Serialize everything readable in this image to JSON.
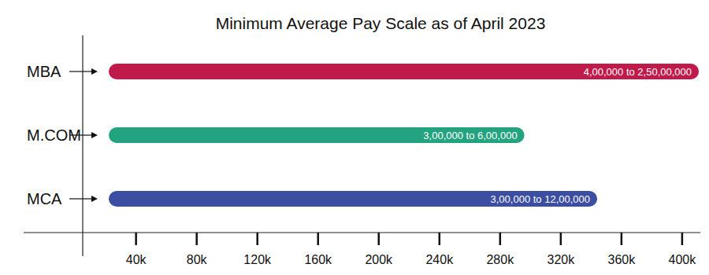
{
  "chart_data": {
    "type": "bar",
    "orientation": "horizontal",
    "title": "Minimum Average Pay Scale as of April 2023",
    "categories": [
      "MBA",
      "M.COM",
      "MCA"
    ],
    "values": [
      411000,
      296000,
      344000
    ],
    "colors": [
      "#c01a4b",
      "#23a380",
      "#3b4ea2"
    ],
    "annotations": [
      "4,00,000 to 2,50,00,000",
      "3,00,000 to 6,00,000",
      "3,00,000 to 12,00,000"
    ],
    "xlim": [
      22000,
      412000
    ],
    "xticks": [
      {
        "value": 40000,
        "label": "40k"
      },
      {
        "value": 80000,
        "label": "80k"
      },
      {
        "value": 120000,
        "label": "120k"
      },
      {
        "value": 160000,
        "label": "160k"
      },
      {
        "value": 200000,
        "label": "200k"
      },
      {
        "value": 240000,
        "label": "240k"
      },
      {
        "value": 280000,
        "label": "280k"
      },
      {
        "value": 320000,
        "label": "320k"
      },
      {
        "value": 360000,
        "label": "360k"
      },
      {
        "value": 400000,
        "label": "400k"
      }
    ]
  }
}
